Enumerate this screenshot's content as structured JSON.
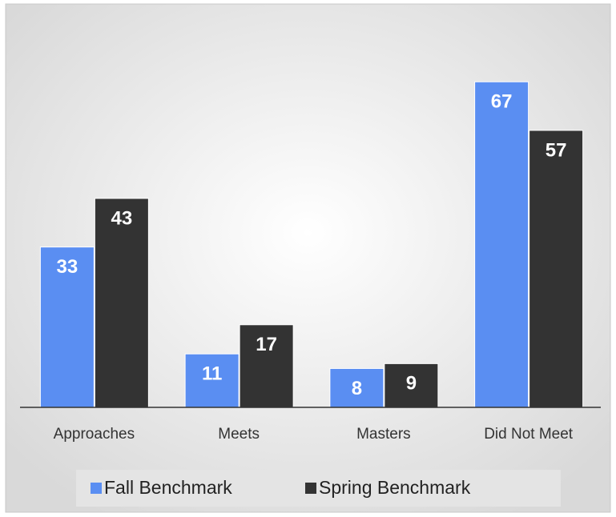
{
  "chart_data": {
    "type": "bar",
    "categories": [
      "Approaches",
      "Meets",
      "Masters",
      "Did Not Meet"
    ],
    "series": [
      {
        "name": "Fall Benchmark",
        "color": "#5a8ef2",
        "values": [
          33,
          11,
          8,
          67
        ]
      },
      {
        "name": "Spring Benchmark",
        "color": "#333333",
        "values": [
          43,
          17,
          9,
          57
        ]
      }
    ],
    "ylim": [
      0,
      70
    ],
    "legend": "bottom"
  }
}
